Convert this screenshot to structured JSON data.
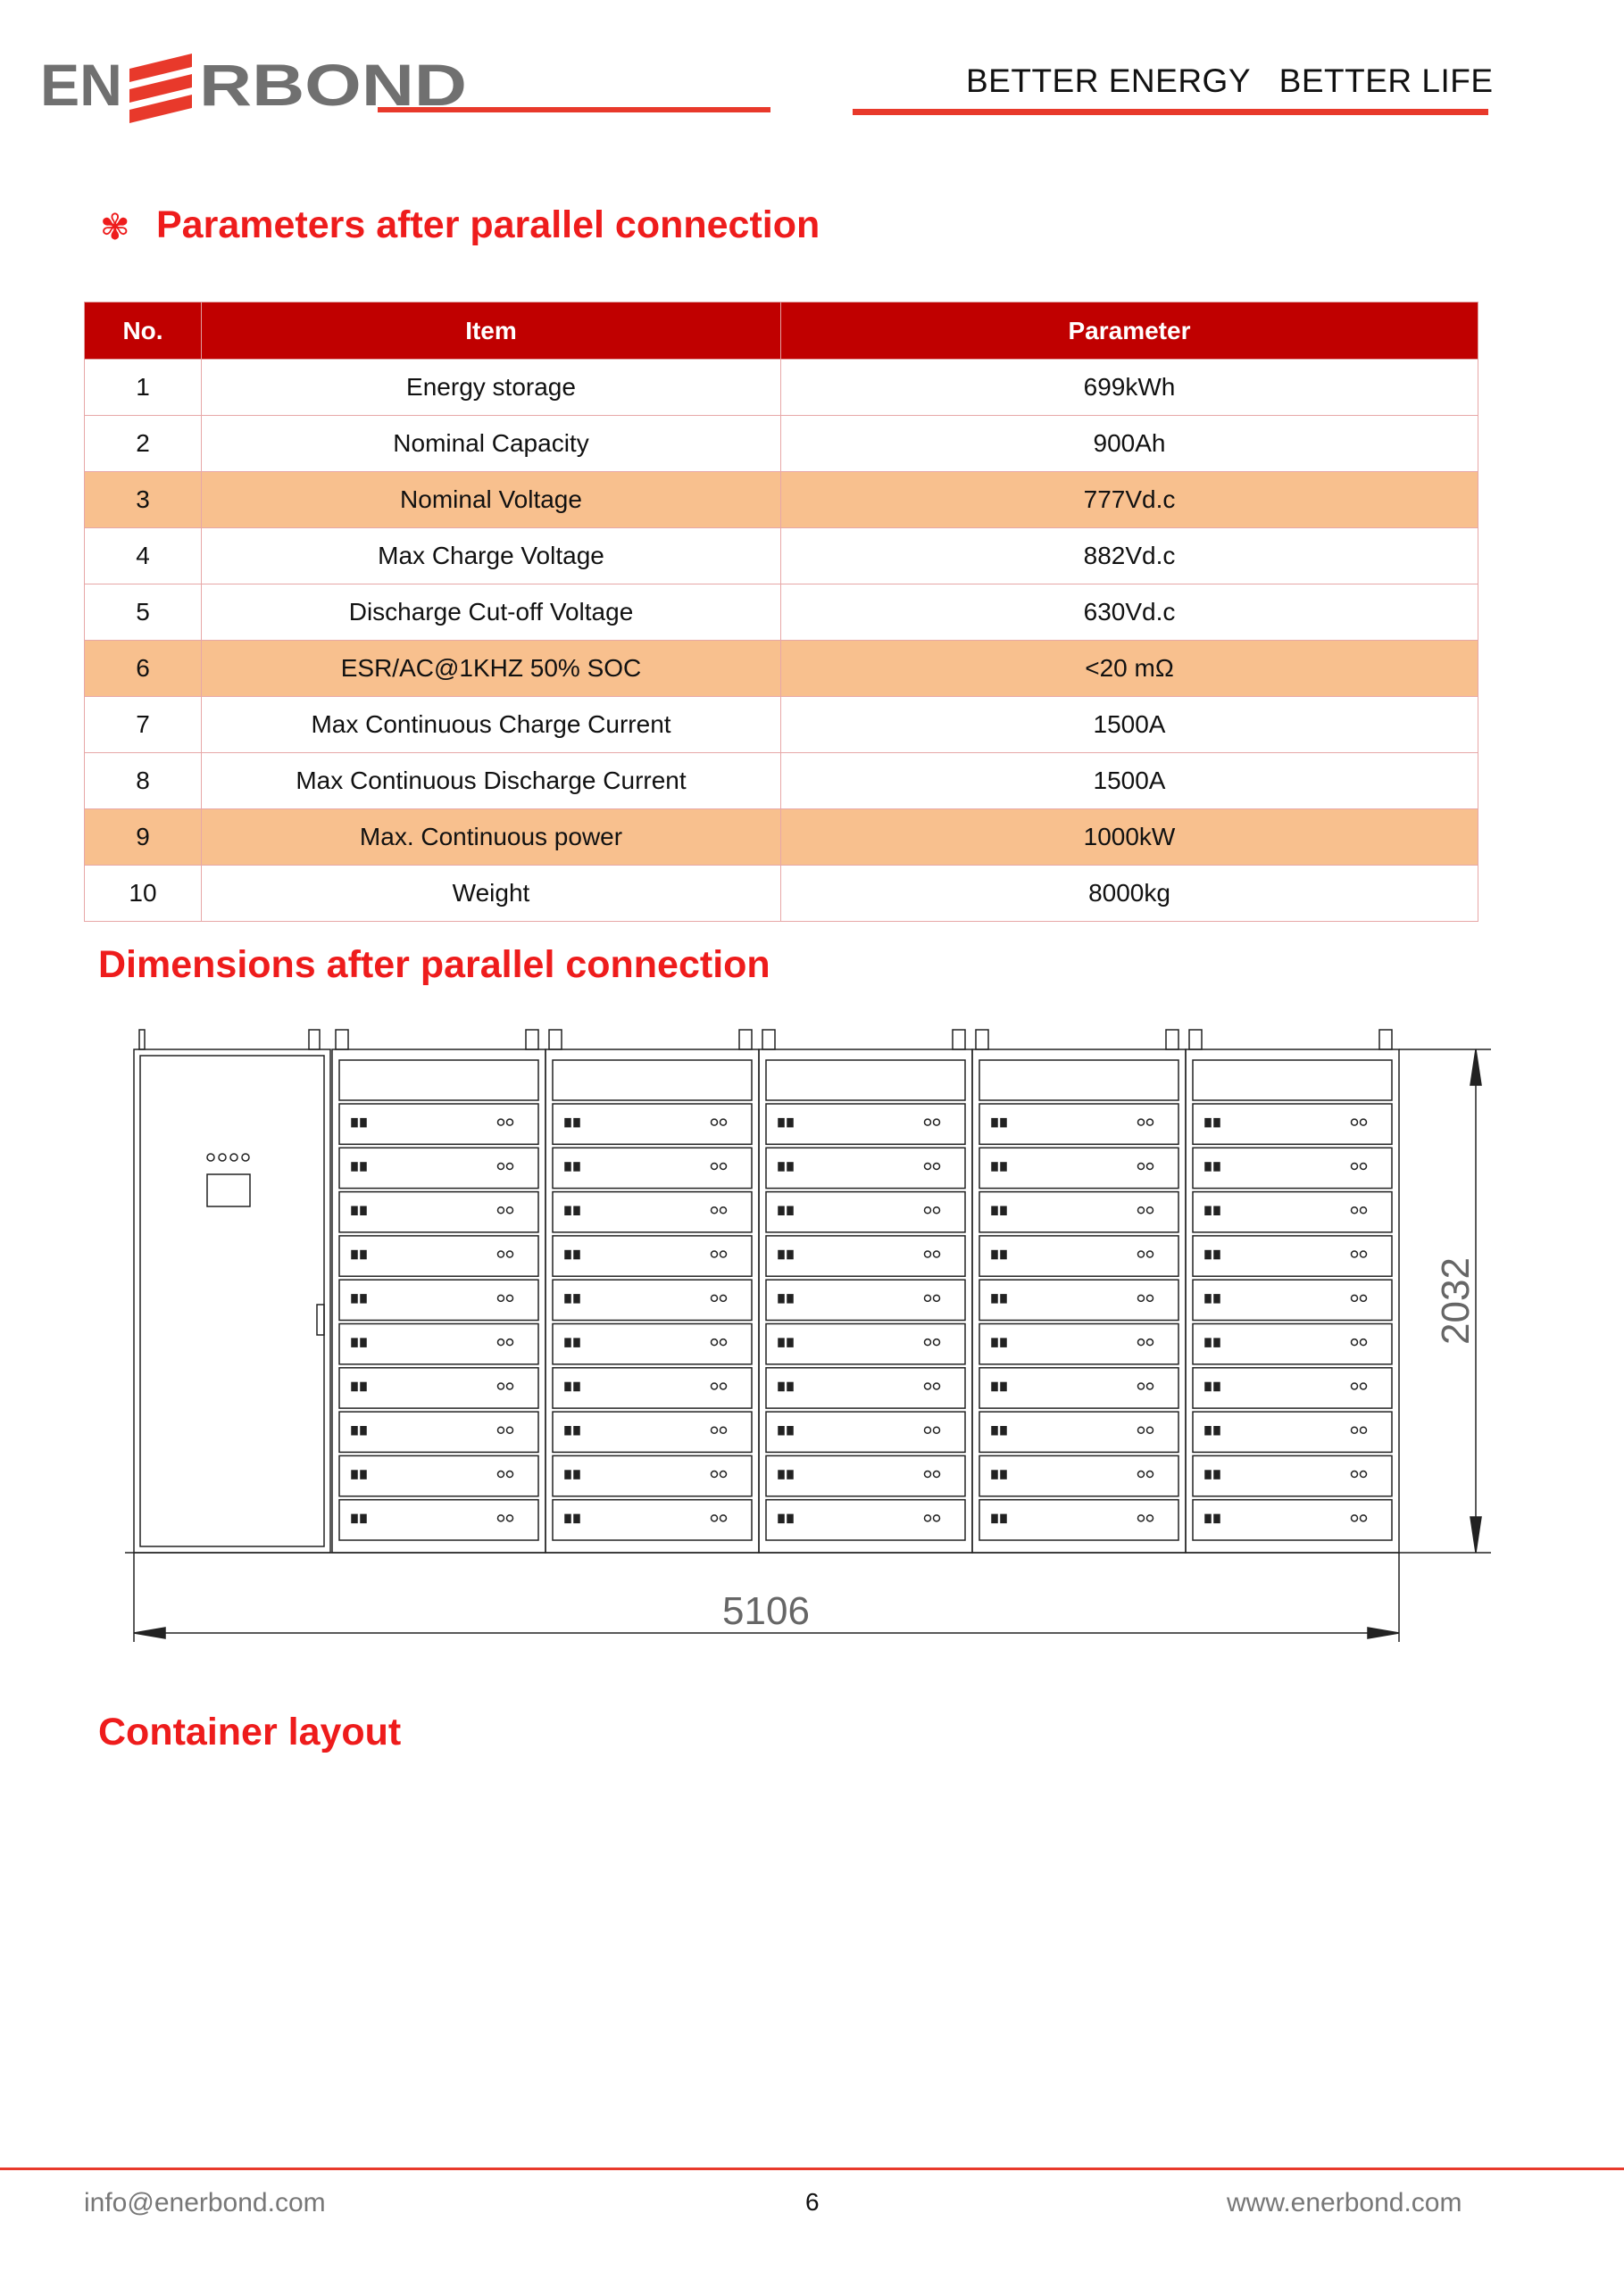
{
  "header": {
    "logo_text": "ENERBOND",
    "tagline": "BETTER ENERGY   BETTER LIFE",
    "brand_color": "#e8392b"
  },
  "section1": {
    "icon": "flower-bullet-icon",
    "title": "Parameters after parallel connection"
  },
  "table": {
    "columns": [
      "No.",
      "Item",
      "Parameter"
    ],
    "rows": [
      {
        "no": "1",
        "item": "Energy storage",
        "param": "699kWh",
        "highlight": false
      },
      {
        "no": "2",
        "item": "Nominal Capacity",
        "param": "900Ah",
        "highlight": false
      },
      {
        "no": "3",
        "item": "Nominal Voltage",
        "param": "777Vd.c",
        "highlight": true
      },
      {
        "no": "4",
        "item": "Max Charge Voltage",
        "param": "882Vd.c",
        "highlight": false
      },
      {
        "no": "5",
        "item": "Discharge Cut-off Voltage",
        "param": "630Vd.c",
        "highlight": false
      },
      {
        "no": "6",
        "item": "ESR/AC@1KHZ 50% SOC",
        "param": "<20 mΩ",
        "highlight": true
      },
      {
        "no": "7",
        "item": "Max Continuous Charge Current",
        "param": "1500A",
        "highlight": false
      },
      {
        "no": "8",
        "item": "Max Continuous Discharge Current",
        "param": "1500A",
        "highlight": false
      },
      {
        "no": "9",
        "item": "Max. Continuous power",
        "param": "1000kW",
        "highlight": true
      },
      {
        "no": "10",
        "item": "Weight",
        "param": "8000kg",
        "highlight": false
      }
    ],
    "header_color": "#c00000",
    "highlight_color": "#f8c08e"
  },
  "section2": {
    "title": "Dimensions after parallel connection",
    "width_dim": "5106",
    "height_dim": "2032"
  },
  "section3": {
    "title": "Container layout"
  },
  "footer": {
    "email": "info@enerbond.com",
    "page": "6",
    "website": "www.enerbond.com"
  }
}
